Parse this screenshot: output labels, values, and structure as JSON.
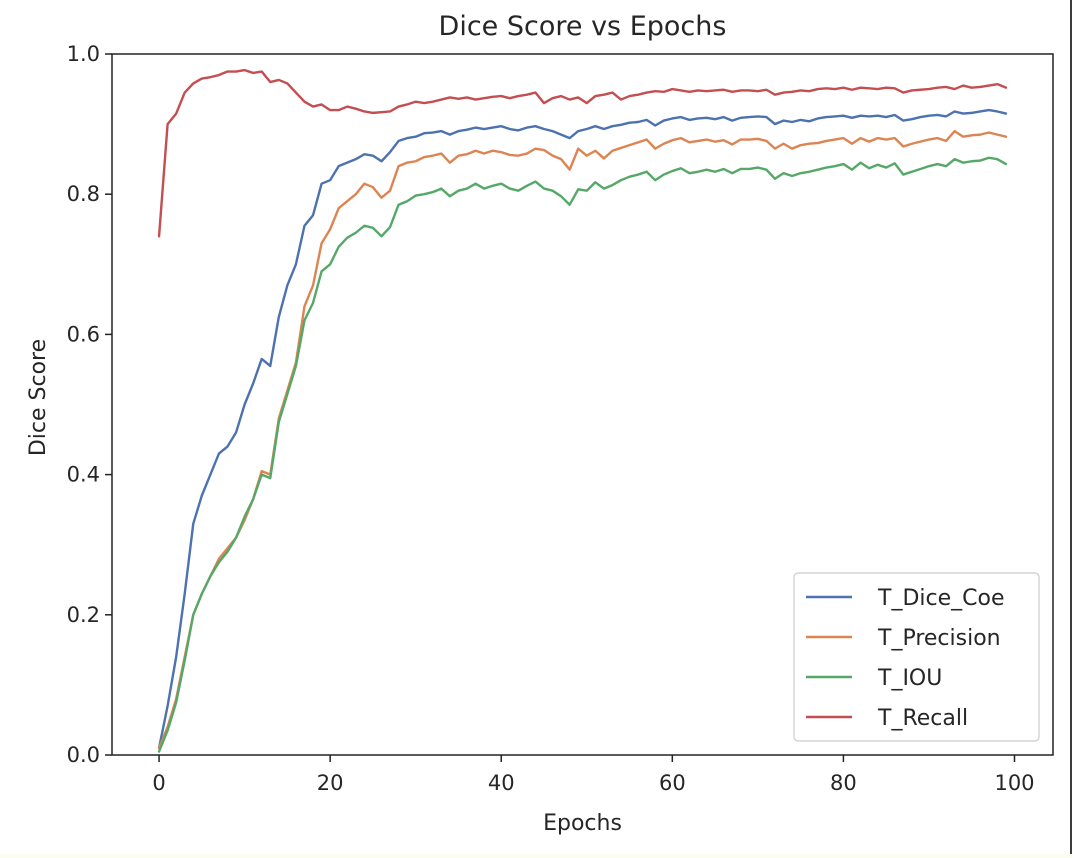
{
  "chart_data": {
    "type": "line",
    "title": "Dice Score vs Epochs",
    "xlabel": "Epochs",
    "ylabel": "Dice Score",
    "xlim": [
      -5.5,
      104.5
    ],
    "ylim": [
      0.0,
      1.0
    ],
    "xticks": [
      0,
      20,
      40,
      60,
      80,
      100
    ],
    "yticks": [
      0.0,
      0.2,
      0.4,
      0.6,
      0.8,
      1.0
    ],
    "xtick_labels": [
      "0",
      "20",
      "40",
      "60",
      "80",
      "100"
    ],
    "ytick_labels": [
      "0.0",
      "0.2",
      "0.4",
      "0.6",
      "0.8",
      "1.0"
    ],
    "grid": false,
    "legend_position": "lower-right",
    "x": [
      0,
      1,
      2,
      3,
      4,
      5,
      6,
      7,
      8,
      9,
      10,
      11,
      12,
      13,
      14,
      15,
      16,
      17,
      18,
      19,
      20,
      21,
      22,
      23,
      24,
      25,
      26,
      27,
      28,
      29,
      30,
      31,
      32,
      33,
      34,
      35,
      36,
      37,
      38,
      39,
      40,
      41,
      42,
      43,
      44,
      45,
      46,
      47,
      48,
      49,
      50,
      51,
      52,
      53,
      54,
      55,
      56,
      57,
      58,
      59,
      60,
      61,
      62,
      63,
      64,
      65,
      66,
      67,
      68,
      69,
      70,
      71,
      72,
      73,
      74,
      75,
      76,
      77,
      78,
      79,
      80,
      81,
      82,
      83,
      84,
      85,
      86,
      87,
      88,
      89,
      90,
      91,
      92,
      93,
      94,
      95,
      96,
      97,
      98,
      99
    ],
    "series": [
      {
        "name": "T_Dice_Coe",
        "color": "#4c72b0",
        "values": [
          0.01,
          0.07,
          0.14,
          0.23,
          0.33,
          0.37,
          0.4,
          0.43,
          0.44,
          0.46,
          0.5,
          0.53,
          0.565,
          0.555,
          0.625,
          0.67,
          0.7,
          0.755,
          0.77,
          0.815,
          0.82,
          0.84,
          0.845,
          0.85,
          0.857,
          0.855,
          0.847,
          0.86,
          0.876,
          0.88,
          0.882,
          0.887,
          0.888,
          0.89,
          0.885,
          0.89,
          0.892,
          0.895,
          0.893,
          0.895,
          0.897,
          0.893,
          0.891,
          0.895,
          0.897,
          0.893,
          0.89,
          0.885,
          0.88,
          0.89,
          0.893,
          0.897,
          0.893,
          0.897,
          0.899,
          0.902,
          0.903,
          0.906,
          0.898,
          0.905,
          0.908,
          0.91,
          0.906,
          0.908,
          0.909,
          0.907,
          0.91,
          0.905,
          0.909,
          0.91,
          0.911,
          0.91,
          0.9,
          0.905,
          0.903,
          0.906,
          0.904,
          0.908,
          0.91,
          0.911,
          0.912,
          0.909,
          0.912,
          0.911,
          0.912,
          0.91,
          0.913,
          0.905,
          0.907,
          0.91,
          0.912,
          0.913,
          0.911,
          0.918,
          0.915,
          0.916,
          0.918,
          0.92,
          0.918,
          0.915
        ]
      },
      {
        "name": "T_Precision",
        "color": "#dd8452",
        "values": [
          0.01,
          0.04,
          0.08,
          0.14,
          0.2,
          0.23,
          0.255,
          0.28,
          0.295,
          0.31,
          0.335,
          0.365,
          0.405,
          0.4,
          0.48,
          0.52,
          0.56,
          0.64,
          0.67,
          0.73,
          0.75,
          0.78,
          0.79,
          0.8,
          0.815,
          0.81,
          0.795,
          0.805,
          0.84,
          0.845,
          0.847,
          0.853,
          0.855,
          0.858,
          0.845,
          0.855,
          0.857,
          0.862,
          0.858,
          0.862,
          0.86,
          0.856,
          0.855,
          0.858,
          0.865,
          0.863,
          0.855,
          0.85,
          0.835,
          0.865,
          0.855,
          0.862,
          0.851,
          0.862,
          0.866,
          0.87,
          0.874,
          0.878,
          0.865,
          0.872,
          0.877,
          0.88,
          0.874,
          0.876,
          0.878,
          0.875,
          0.877,
          0.871,
          0.878,
          0.878,
          0.879,
          0.876,
          0.865,
          0.872,
          0.865,
          0.87,
          0.872,
          0.873,
          0.876,
          0.878,
          0.88,
          0.872,
          0.88,
          0.875,
          0.88,
          0.878,
          0.88,
          0.868,
          0.872,
          0.875,
          0.878,
          0.88,
          0.876,
          0.89,
          0.882,
          0.884,
          0.885,
          0.888,
          0.885,
          0.882
        ]
      },
      {
        "name": "T_IOU",
        "color": "#55a868",
        "values": [
          0.005,
          0.035,
          0.075,
          0.135,
          0.2,
          0.23,
          0.255,
          0.275,
          0.29,
          0.31,
          0.34,
          0.365,
          0.4,
          0.395,
          0.475,
          0.515,
          0.555,
          0.62,
          0.645,
          0.69,
          0.7,
          0.725,
          0.738,
          0.745,
          0.755,
          0.752,
          0.74,
          0.753,
          0.785,
          0.79,
          0.798,
          0.8,
          0.803,
          0.808,
          0.797,
          0.805,
          0.808,
          0.815,
          0.808,
          0.812,
          0.815,
          0.808,
          0.805,
          0.812,
          0.818,
          0.808,
          0.805,
          0.797,
          0.785,
          0.807,
          0.805,
          0.817,
          0.808,
          0.813,
          0.82,
          0.825,
          0.828,
          0.832,
          0.82,
          0.828,
          0.833,
          0.837,
          0.83,
          0.832,
          0.835,
          0.832,
          0.836,
          0.83,
          0.836,
          0.836,
          0.838,
          0.835,
          0.822,
          0.83,
          0.826,
          0.83,
          0.832,
          0.835,
          0.838,
          0.84,
          0.843,
          0.835,
          0.845,
          0.837,
          0.842,
          0.838,
          0.844,
          0.828,
          0.832,
          0.836,
          0.84,
          0.843,
          0.84,
          0.85,
          0.845,
          0.847,
          0.848,
          0.852,
          0.85,
          0.843
        ]
      },
      {
        "name": "T_Recall",
        "color": "#c44e52",
        "values": [
          0.74,
          0.9,
          0.915,
          0.945,
          0.958,
          0.965,
          0.967,
          0.97,
          0.975,
          0.975,
          0.977,
          0.973,
          0.975,
          0.96,
          0.963,
          0.958,
          0.945,
          0.932,
          0.925,
          0.928,
          0.92,
          0.92,
          0.925,
          0.922,
          0.918,
          0.916,
          0.917,
          0.918,
          0.925,
          0.928,
          0.932,
          0.93,
          0.932,
          0.935,
          0.938,
          0.936,
          0.938,
          0.935,
          0.937,
          0.939,
          0.94,
          0.937,
          0.94,
          0.942,
          0.945,
          0.93,
          0.937,
          0.94,
          0.935,
          0.938,
          0.93,
          0.94,
          0.942,
          0.945,
          0.935,
          0.94,
          0.942,
          0.945,
          0.947,
          0.946,
          0.95,
          0.948,
          0.946,
          0.948,
          0.947,
          0.948,
          0.949,
          0.946,
          0.948,
          0.948,
          0.947,
          0.949,
          0.942,
          0.945,
          0.946,
          0.948,
          0.947,
          0.95,
          0.951,
          0.95,
          0.952,
          0.949,
          0.952,
          0.951,
          0.95,
          0.952,
          0.951,
          0.945,
          0.948,
          0.949,
          0.95,
          0.952,
          0.953,
          0.95,
          0.955,
          0.952,
          0.953,
          0.955,
          0.957,
          0.952
        ]
      }
    ]
  }
}
